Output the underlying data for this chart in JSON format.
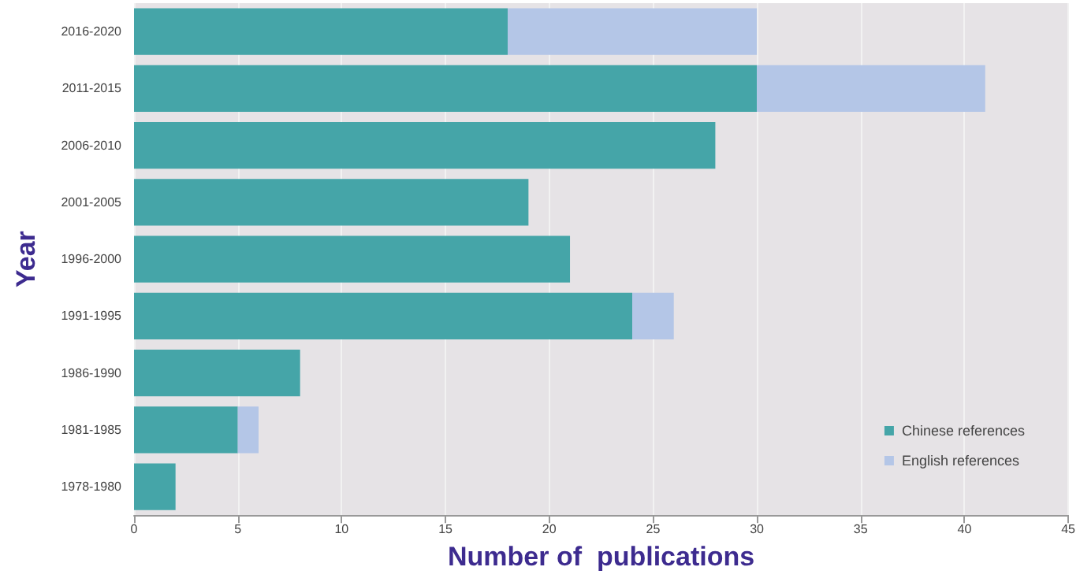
{
  "chart_data": {
    "type": "bar",
    "orientation": "horizontal",
    "stacked": true,
    "xlabel": "Number of  publications",
    "ylabel": "Year",
    "categories": [
      "2016-2020",
      "2011-2015",
      "2006-2010",
      "2001-2005",
      "1996-2000",
      "1991-1995",
      "1986-1990",
      "1981-1985",
      "1978-1980"
    ],
    "series": [
      {
        "name": "Chinese references",
        "color": "#45a5a8",
        "values": [
          18,
          30,
          28,
          19,
          21,
          24,
          8,
          5,
          2
        ]
      },
      {
        "name": "English references",
        "color": "#b4c6e7",
        "values": [
          12,
          11,
          0,
          0,
          0,
          2,
          0,
          1,
          0
        ]
      }
    ],
    "xlim": [
      0,
      45
    ],
    "xticks": [
      0,
      5,
      10,
      15,
      20,
      25,
      30,
      35,
      40,
      45
    ],
    "grid": "x",
    "legend": "bottom right"
  }
}
